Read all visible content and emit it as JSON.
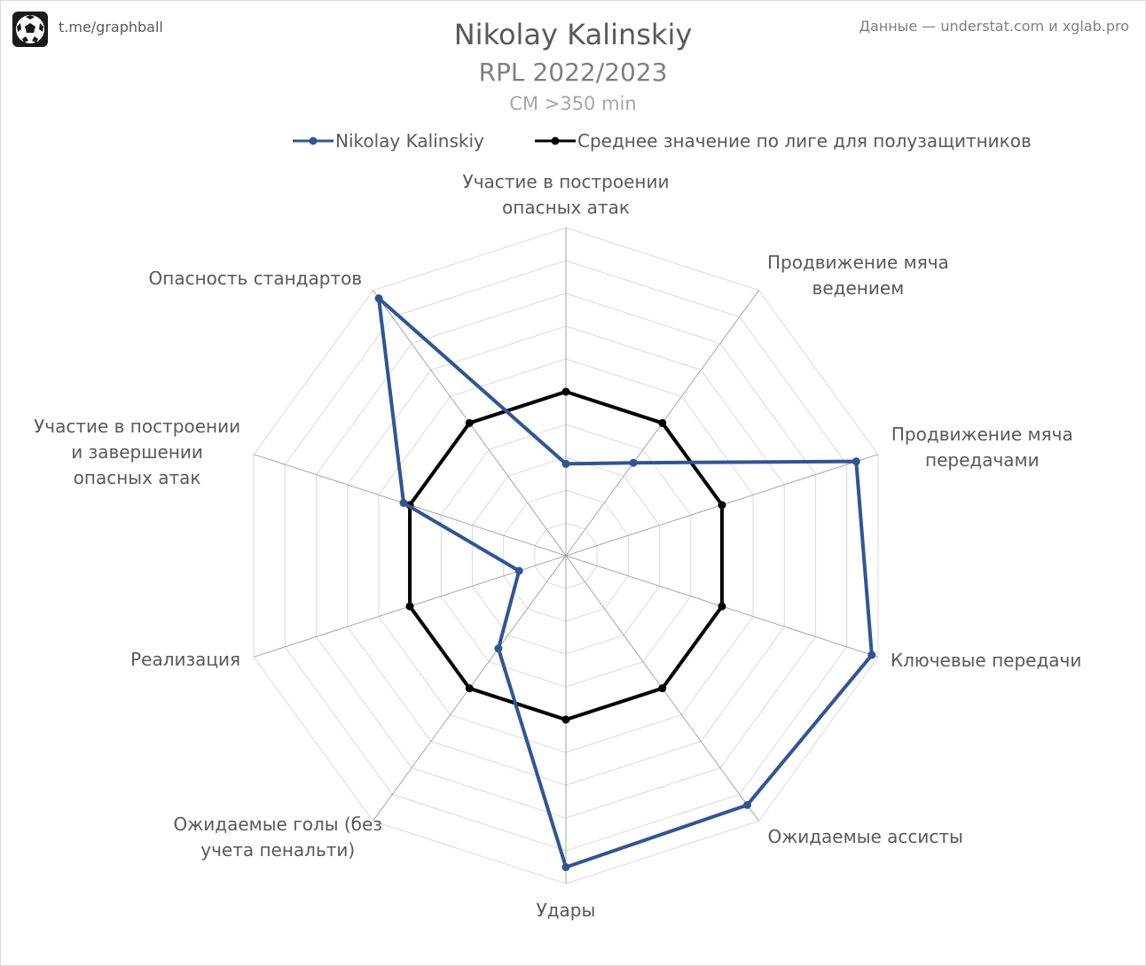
{
  "header": {
    "brand": "t.me/graphball",
    "source": "Данные — understat.com и xglab.pro",
    "title": "Nikolay Kalinskiy",
    "subtitle": "RPL 2022/2023",
    "subsubtitle": "CM >350 min"
  },
  "colors": {
    "player": "#2f5597",
    "average": "#000000",
    "grid": "#d9d9d9",
    "spoke": "#a6a6a6"
  },
  "chart_data": {
    "type": "radar",
    "title": "Nikolay Kalinskiy",
    "subtitle": "RPL 2022/2023",
    "categories": [
      "Участие в построении\nопасных атак",
      "Продвижение мяча\nведением",
      "Продвижение мяча\nпередачами",
      "Ключевые передачи",
      "Ожидаемые ассисты",
      "Удары",
      "Ожидаемые голы (без\nучета пенальти)",
      "Реализация",
      "Участие в построении\nи завершении\nопасных атак",
      "Опасность стандартов"
    ],
    "range": [
      0,
      10
    ],
    "grid_levels": 10,
    "grid": true,
    "legend_position": "top",
    "series": [
      {
        "name": "Nikolay Kalinskiy",
        "values": [
          2.8,
          3.5,
          9.3,
          9.8,
          9.4,
          9.5,
          3.5,
          1.5,
          5.2,
          9.7
        ]
      },
      {
        "name": "Среднее значение по лиге для полузащитников",
        "values": [
          5,
          5,
          5,
          5,
          5,
          5,
          5,
          5,
          5,
          5
        ]
      }
    ]
  }
}
